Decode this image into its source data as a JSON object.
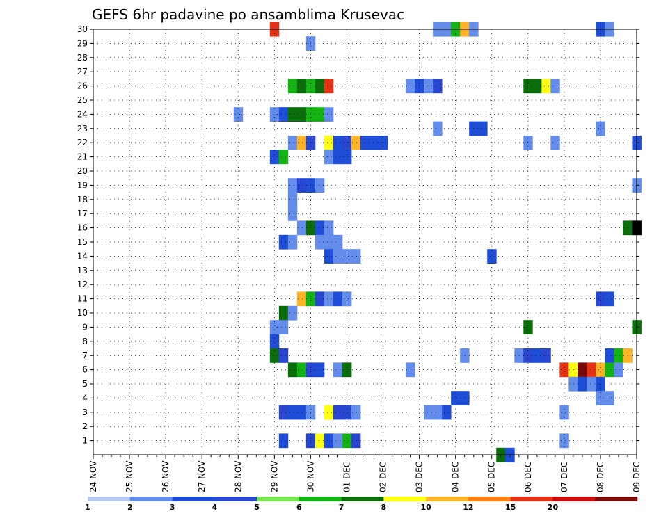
{
  "chart_data": {
    "type": "heatmap",
    "title": "GEFS 6hr padavine po ansamblima Krusevac",
    "xlabel": "",
    "ylabel": "",
    "x_ticks": [
      "24 NOV",
      "25 NOV",
      "26 NOV",
      "27 NOV",
      "28 NOV",
      "29 NOV",
      "30 NOV",
      "01 DEC",
      "02 DEC",
      "03 DEC",
      "04 DEC",
      "05 DEC",
      "06 DEC",
      "07 DEC",
      "08 DEC",
      "09 DEC"
    ],
    "xlim_days": [
      0,
      15
    ],
    "time_step": "6hr",
    "y_ticks": [
      1,
      2,
      3,
      4,
      5,
      6,
      7,
      8,
      9,
      10,
      11,
      12,
      13,
      14,
      15,
      16,
      17,
      18,
      19,
      20,
      21,
      22,
      23,
      24,
      25,
      26,
      27,
      28,
      29,
      30
    ],
    "ylim": [
      0,
      30
    ],
    "grid": true,
    "color_scale": {
      "labels": [
        "1",
        "2",
        "3",
        "4",
        "5",
        "6",
        "7",
        "8",
        "10",
        "12",
        "15",
        "20"
      ],
      "colors": [
        "#b4c8f0",
        "#648cea",
        "#1e4ed8",
        "#2846d0",
        "#78e650",
        "#14b414",
        "#0a6e0a",
        "#ffff14",
        "#ffb428",
        "#ff8214",
        "#e63214",
        "#c80a0a",
        "#7a0a0a"
      ]
    },
    "cells": [
      [
        30,
        5.0,
        10
      ],
      [
        30,
        9.5,
        1
      ],
      [
        30,
        9.75,
        1
      ],
      [
        30,
        10.0,
        5
      ],
      [
        30,
        10.25,
        8
      ],
      [
        30,
        10.5,
        1
      ],
      [
        30,
        14.0,
        2
      ],
      [
        30,
        14.25,
        1
      ],
      [
        29,
        6.0,
        1
      ],
      [
        26,
        5.5,
        5
      ],
      [
        26,
        5.75,
        6
      ],
      [
        26,
        6.0,
        5
      ],
      [
        26,
        6.25,
        6
      ],
      [
        26,
        6.5,
        10
      ],
      [
        26,
        8.75,
        1
      ],
      [
        26,
        9.0,
        2
      ],
      [
        26,
        9.25,
        1
      ],
      [
        26,
        9.5,
        3
      ],
      [
        26,
        12.0,
        6
      ],
      [
        26,
        12.25,
        6
      ],
      [
        26,
        12.5,
        7
      ],
      [
        26,
        12.75,
        1
      ],
      [
        24,
        4.0,
        1
      ],
      [
        24,
        5.0,
        1
      ],
      [
        24,
        5.25,
        2
      ],
      [
        24,
        5.5,
        6
      ],
      [
        24,
        5.75,
        6
      ],
      [
        24,
        6.0,
        5
      ],
      [
        24,
        6.25,
        5
      ],
      [
        24,
        6.5,
        1
      ],
      [
        23,
        9.5,
        1
      ],
      [
        23,
        10.5,
        2
      ],
      [
        23,
        10.75,
        2
      ],
      [
        23,
        14.0,
        1
      ],
      [
        22,
        5.5,
        1
      ],
      [
        22,
        5.75,
        8
      ],
      [
        22,
        6.0,
        3
      ],
      [
        22,
        6.5,
        7
      ],
      [
        22,
        6.75,
        2
      ],
      [
        22,
        7.0,
        3
      ],
      [
        22,
        7.25,
        8
      ],
      [
        22,
        7.5,
        2
      ],
      [
        22,
        7.75,
        2
      ],
      [
        22,
        8.0,
        2
      ],
      [
        22,
        12.0,
        1
      ],
      [
        22,
        12.75,
        1
      ],
      [
        22,
        15.0,
        2
      ],
      [
        21,
        5.0,
        2
      ],
      [
        21,
        5.25,
        5
      ],
      [
        21,
        6.5,
        1
      ],
      [
        21,
        6.75,
        2
      ],
      [
        21,
        7.0,
        2
      ],
      [
        19,
        5.5,
        1
      ],
      [
        19,
        5.75,
        3
      ],
      [
        19,
        6.0,
        2
      ],
      [
        19,
        6.25,
        1
      ],
      [
        19,
        15.0,
        1
      ],
      [
        18,
        5.5,
        1
      ],
      [
        17,
        5.5,
        1
      ],
      [
        16,
        5.75,
        1
      ],
      [
        16,
        6.0,
        6
      ],
      [
        16,
        6.25,
        2
      ],
      [
        16,
        6.5,
        1
      ],
      [
        16,
        14.75,
        6
      ],
      [
        16,
        15.0,
        13
      ],
      [
        15,
        5.25,
        2
      ],
      [
        15,
        5.5,
        1
      ],
      [
        15,
        6.25,
        1
      ],
      [
        15,
        6.5,
        1
      ],
      [
        15,
        6.75,
        1
      ],
      [
        14,
        6.5,
        2
      ],
      [
        14,
        6.75,
        1
      ],
      [
        14,
        7.0,
        1
      ],
      [
        14,
        7.25,
        1
      ],
      [
        14,
        11.0,
        2
      ],
      [
        11,
        5.75,
        8
      ],
      [
        11,
        6.0,
        5
      ],
      [
        11,
        6.25,
        3
      ],
      [
        11,
        6.5,
        1
      ],
      [
        11,
        6.75,
        2
      ],
      [
        11,
        7.0,
        1
      ],
      [
        11,
        14.0,
        3
      ],
      [
        11,
        14.25,
        2
      ],
      [
        10,
        5.25,
        6
      ],
      [
        10,
        5.5,
        1
      ],
      [
        9,
        5.0,
        1
      ],
      [
        9,
        5.25,
        1
      ],
      [
        9,
        12.0,
        6
      ],
      [
        9,
        15.0,
        6
      ],
      [
        8,
        5.0,
        2
      ],
      [
        7,
        5.0,
        6
      ],
      [
        7,
        5.25,
        3
      ],
      [
        7,
        10.25,
        1
      ],
      [
        7,
        11.75,
        1
      ],
      [
        7,
        12.0,
        3
      ],
      [
        7,
        12.25,
        2
      ],
      [
        7,
        12.5,
        3
      ],
      [
        7,
        14.25,
        2
      ],
      [
        7,
        14.5,
        5
      ],
      [
        7,
        14.75,
        8
      ],
      [
        6,
        5.5,
        6
      ],
      [
        6,
        5.75,
        5
      ],
      [
        6,
        6.0,
        3
      ],
      [
        6,
        6.25,
        2
      ],
      [
        6,
        6.75,
        1
      ],
      [
        6,
        7.0,
        6
      ],
      [
        6,
        8.75,
        1
      ],
      [
        6,
        13.0,
        10
      ],
      [
        6,
        13.25,
        7
      ],
      [
        6,
        13.5,
        12
      ],
      [
        6,
        13.75,
        10
      ],
      [
        6,
        14.0,
        8
      ],
      [
        6,
        14.25,
        5
      ],
      [
        6,
        14.5,
        1
      ],
      [
        5,
        13.25,
        1
      ],
      [
        5,
        13.5,
        2
      ],
      [
        5,
        13.75,
        1
      ],
      [
        5,
        14.0,
        2
      ],
      [
        4,
        10.0,
        2
      ],
      [
        4,
        10.25,
        2
      ],
      [
        4,
        14.0,
        1
      ],
      [
        4,
        14.25,
        1
      ],
      [
        3,
        5.25,
        3
      ],
      [
        3,
        5.5,
        2
      ],
      [
        3,
        5.75,
        2
      ],
      [
        3,
        6.0,
        1
      ],
      [
        3,
        6.5,
        7
      ],
      [
        3,
        6.75,
        3
      ],
      [
        3,
        7.0,
        3
      ],
      [
        3,
        7.25,
        1
      ],
      [
        3,
        9.25,
        1
      ],
      [
        3,
        9.5,
        1
      ],
      [
        3,
        9.75,
        2
      ],
      [
        3,
        13.0,
        1
      ],
      [
        1,
        5.25,
        2
      ],
      [
        1,
        6.0,
        3
      ],
      [
        1,
        6.25,
        7
      ],
      [
        1,
        6.5,
        2
      ],
      [
        1,
        6.75,
        1
      ],
      [
        1,
        7.0,
        5
      ],
      [
        1,
        7.25,
        3
      ],
      [
        1,
        13.0,
        1
      ],
      [
        0,
        11.25,
        6
      ],
      [
        0,
        11.5,
        2
      ]
    ]
  }
}
